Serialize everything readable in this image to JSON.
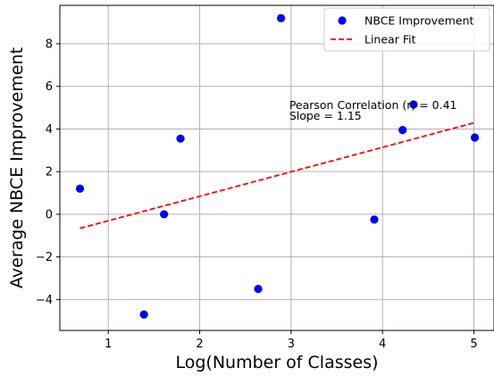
{
  "chart_data": {
    "type": "scatter",
    "xlabel": "Log(Number of Classes)",
    "ylabel": "Average NBCE Improvement",
    "xlim": [
      0.47,
      5.22
    ],
    "ylim": [
      -5.45,
      9.8
    ],
    "xticks": [
      1,
      2,
      3,
      4,
      5
    ],
    "yticks": [
      -4,
      -2,
      0,
      2,
      4,
      6,
      8
    ],
    "grid": true,
    "legend_position": "top-right",
    "series": [
      {
        "name": "NBCE Improvement",
        "kind": "scatter",
        "color": "#0000ff",
        "x": [
          0.69,
          1.39,
          1.61,
          1.79,
          2.64,
          2.89,
          3.91,
          4.22,
          4.34,
          5.01
        ],
        "y": [
          1.2,
          -4.7,
          0.0,
          3.55,
          -3.5,
          9.2,
          -0.25,
          3.95,
          5.15,
          3.6
        ]
      },
      {
        "name": "Linear Fit",
        "kind": "line",
        "color": "#ff0000",
        "style": "dashed",
        "x": [
          0.69,
          5.01
        ],
        "y": [
          -0.66,
          4.3
        ]
      }
    ],
    "annotations": [
      {
        "text": "Pearson Correlation (r) = 0.41",
        "x": 2.98,
        "y": 5.15
      },
      {
        "text": "Slope = 1.15",
        "x": 2.98,
        "y": 4.65
      }
    ]
  }
}
